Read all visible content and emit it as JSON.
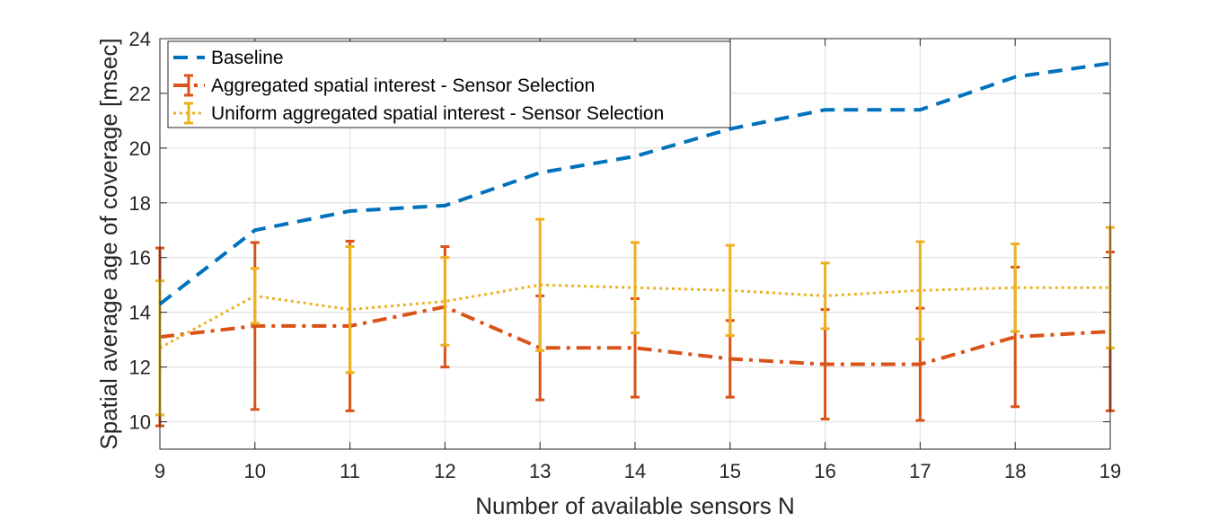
{
  "chart_data": {
    "type": "line",
    "title": "",
    "xlabel": "Number of available sensors N",
    "ylabel": "Spatial average age of coverage [msec]",
    "xlim": [
      9,
      19
    ],
    "ylim": [
      9,
      24
    ],
    "x_ticks": [
      9,
      10,
      11,
      12,
      13,
      14,
      15,
      16,
      17,
      18,
      19
    ],
    "y_ticks": [
      10,
      12,
      14,
      16,
      18,
      20,
      22,
      24
    ],
    "grid": true,
    "legend_position": "top-left",
    "x": [
      9,
      10,
      11,
      12,
      13,
      14,
      15,
      16,
      17,
      18,
      19
    ],
    "series": [
      {
        "name": "Baseline",
        "style": "dashed",
        "color": "#0072BD",
        "values": [
          14.3,
          17.0,
          17.7,
          17.9,
          19.1,
          19.7,
          20.7,
          21.4,
          21.4,
          22.6,
          23.1
        ],
        "errors": null
      },
      {
        "name": "Aggregated spatial interest - Sensor Selection",
        "style": "dashdot",
        "color": "#D95319",
        "values": [
          13.1,
          13.5,
          13.5,
          14.2,
          12.7,
          12.7,
          12.3,
          12.1,
          12.1,
          13.1,
          13.3
        ],
        "errors": [
          3.25,
          3.05,
          3.1,
          2.2,
          1.9,
          1.8,
          1.4,
          2.0,
          2.05,
          2.55,
          2.9
        ]
      },
      {
        "name": "Uniform aggregated spatial interest - Sensor Selection",
        "style": "dotted",
        "color": "#EDB120",
        "values": [
          12.7,
          14.6,
          14.1,
          14.4,
          15.0,
          14.9,
          14.8,
          14.6,
          14.8,
          14.9,
          14.9
        ],
        "errors": [
          2.45,
          1.0,
          2.3,
          1.6,
          2.4,
          1.65,
          1.65,
          1.2,
          1.78,
          1.6,
          2.2
        ]
      }
    ]
  }
}
